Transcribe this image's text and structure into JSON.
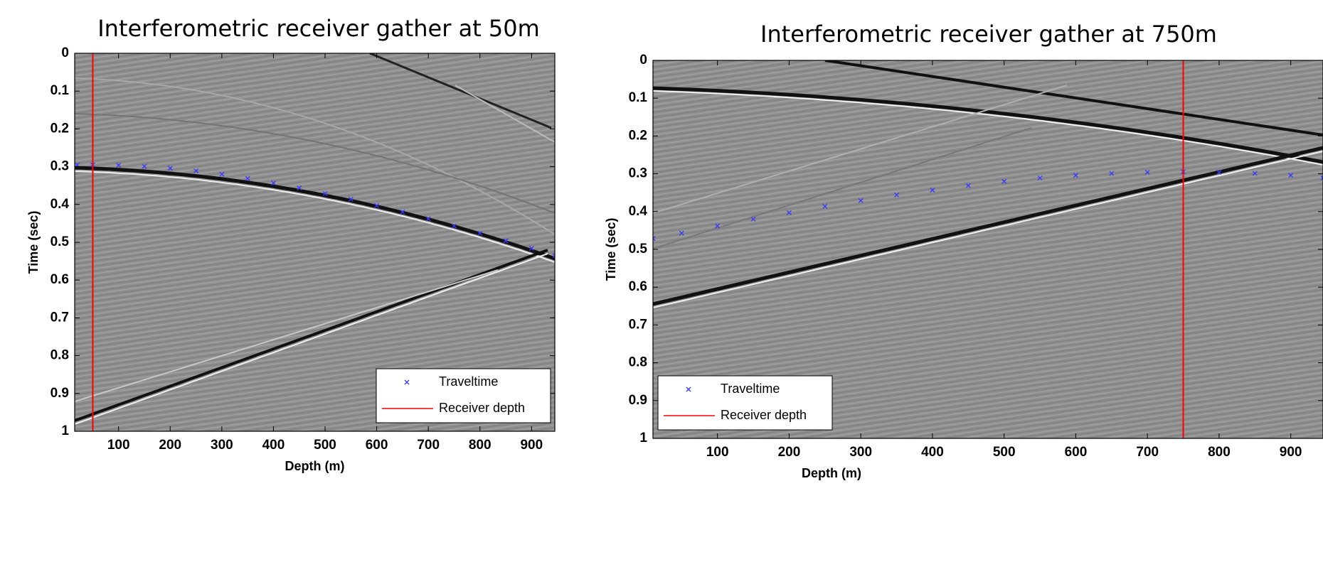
{
  "chart_data": [
    {
      "type": "scatter",
      "title": "Interferometric receiver gather at 50m",
      "xlabel": "Depth (m)",
      "ylabel": "Time (sec)",
      "xlim": [
        15,
        945
      ],
      "ylim": [
        0,
        1
      ],
      "y_reversed": true,
      "xticks": [
        100,
        200,
        300,
        400,
        500,
        600,
        700,
        800,
        900
      ],
      "yticks": [
        0,
        0.1,
        0.2,
        0.3,
        0.4,
        0.5,
        0.6,
        0.7,
        0.8,
        0.9,
        1
      ],
      "legend": "lower right",
      "series": [
        {
          "name": "Traveltime",
          "color": "#3a3aff",
          "style": "marker",
          "x": [
            20,
            50,
            100,
            150,
            200,
            250,
            300,
            350,
            400,
            450,
            500,
            550,
            600,
            650,
            700,
            750,
            800,
            850,
            900,
            945
          ],
          "values": [
            0.295,
            0.295,
            0.296,
            0.299,
            0.304,
            0.311,
            0.32,
            0.331,
            0.343,
            0.356,
            0.371,
            0.386,
            0.403,
            0.42,
            0.438,
            0.457,
            0.476,
            0.496,
            0.516,
            0.535
          ]
        },
        {
          "name": "Receiver depth",
          "color": "#ff0000",
          "style": "line",
          "x": [
            50,
            50
          ],
          "values": [
            0,
            1
          ]
        }
      ]
    },
    {
      "type": "scatter",
      "title": "Interferometric receiver gather at 750m",
      "xlabel": "Depth (m)",
      "ylabel": "Time (sec)",
      "xlim": [
        10,
        945
      ],
      "ylim": [
        0,
        1
      ],
      "y_reversed": true,
      "xticks": [
        100,
        200,
        300,
        400,
        500,
        600,
        700,
        800,
        900
      ],
      "yticks": [
        0,
        0.1,
        0.2,
        0.3,
        0.4,
        0.5,
        0.6,
        0.7,
        0.8,
        0.9,
        1
      ],
      "legend": "lower left",
      "series": [
        {
          "name": "Traveltime",
          "color": "#3a3aff",
          "style": "marker",
          "x": [
            10,
            50,
            100,
            150,
            200,
            250,
            300,
            350,
            400,
            450,
            500,
            550,
            600,
            650,
            700,
            750,
            800,
            850,
            900,
            945
          ],
          "values": [
            0.471,
            0.457,
            0.438,
            0.42,
            0.403,
            0.386,
            0.371,
            0.356,
            0.343,
            0.331,
            0.32,
            0.311,
            0.304,
            0.299,
            0.296,
            0.295,
            0.296,
            0.299,
            0.304,
            0.311
          ]
        },
        {
          "name": "Receiver depth",
          "color": "#ff0000",
          "style": "line",
          "x": [
            750,
            750
          ],
          "values": [
            0,
            1
          ]
        }
      ]
    }
  ]
}
